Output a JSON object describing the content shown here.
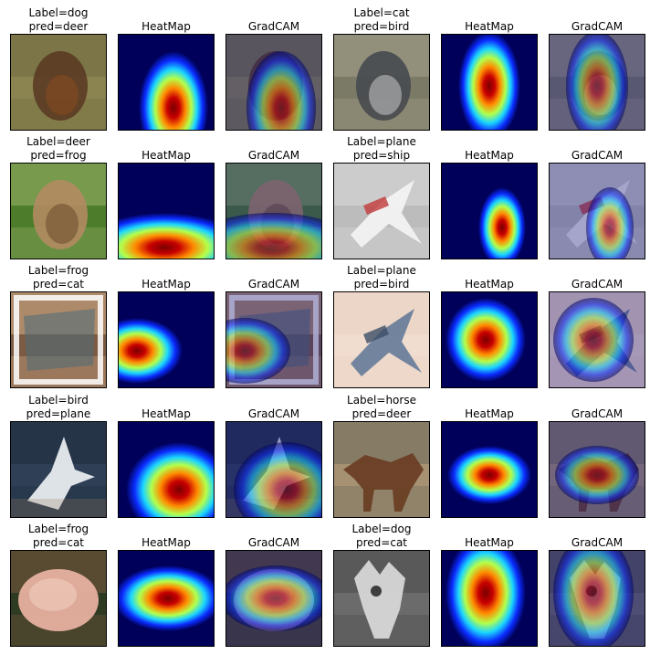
{
  "rows": [
    [
      {
        "title": "Label=dog\npred=deer",
        "kind": "photo",
        "palette": "grass-dog"
      },
      {
        "title": "HeatMap",
        "kind": "heatmap",
        "pattern": "lower-center"
      },
      {
        "title": "GradCAM",
        "kind": "gradcam",
        "palette": "grass-dog",
        "pattern": "lower-center"
      },
      {
        "title": "Label=cat\npred=bird",
        "kind": "photo",
        "palette": "gray-cat"
      },
      {
        "title": "HeatMap",
        "kind": "heatmap",
        "pattern": "center-vertical"
      },
      {
        "title": "GradCAM",
        "kind": "gradcam",
        "palette": "gray-cat",
        "pattern": "center-vertical"
      }
    ],
    [
      {
        "title": "Label=deer\npred=frog",
        "kind": "photo",
        "palette": "forest-deer"
      },
      {
        "title": "HeatMap",
        "kind": "heatmap",
        "pattern": "bottom-band"
      },
      {
        "title": "GradCAM",
        "kind": "gradcam",
        "palette": "forest-deer",
        "pattern": "bottom-band"
      },
      {
        "title": "Label=plane\npred=ship",
        "kind": "photo",
        "palette": "white-plane"
      },
      {
        "title": "HeatMap",
        "kind": "heatmap",
        "pattern": "right-vertical"
      },
      {
        "title": "GradCAM",
        "kind": "gradcam",
        "palette": "white-plane",
        "pattern": "right-vertical"
      }
    ],
    [
      {
        "title": "Label=frog\npred=cat",
        "kind": "photo",
        "palette": "frame-frog"
      },
      {
        "title": "HeatMap",
        "kind": "heatmap",
        "pattern": "left-blob"
      },
      {
        "title": "GradCAM",
        "kind": "gradcam",
        "palette": "frame-frog",
        "pattern": "left-blob"
      },
      {
        "title": "Label=plane\npred=bird",
        "kind": "photo",
        "palette": "pale-plane"
      },
      {
        "title": "HeatMap",
        "kind": "heatmap",
        "pattern": "center-blob"
      },
      {
        "title": "GradCAM",
        "kind": "gradcam",
        "palette": "pale-plane",
        "pattern": "center-blob"
      }
    ],
    [
      {
        "title": "Label=bird\npred=plane",
        "kind": "photo",
        "palette": "sea-bird"
      },
      {
        "title": "HeatMap",
        "kind": "heatmap",
        "pattern": "lower-right"
      },
      {
        "title": "GradCAM",
        "kind": "gradcam",
        "palette": "sea-bird",
        "pattern": "lower-right"
      },
      {
        "title": "Label=horse\npred=deer",
        "kind": "photo",
        "palette": "brown-horse"
      },
      {
        "title": "HeatMap",
        "kind": "heatmap",
        "pattern": "mid-wide"
      },
      {
        "title": "GradCAM",
        "kind": "gradcam",
        "palette": "brown-horse",
        "pattern": "mid-wide"
      }
    ],
    [
      {
        "title": "Label=frog\npred=cat",
        "kind": "photo",
        "palette": "pink-frog"
      },
      {
        "title": "HeatMap",
        "kind": "heatmap",
        "pattern": "center-horizontal"
      },
      {
        "title": "GradCAM",
        "kind": "gradcam",
        "palette": "pink-frog",
        "pattern": "center-horizontal"
      },
      {
        "title": "Label=dog\npred=cat",
        "kind": "photo",
        "palette": "gray-dog"
      },
      {
        "title": "HeatMap",
        "kind": "heatmap",
        "pattern": "center-vertical-wide"
      },
      {
        "title": "GradCAM",
        "kind": "gradcam",
        "palette": "gray-dog",
        "pattern": "center-vertical-wide"
      }
    ]
  ],
  "palettes": {
    "grass-dog": {
      "bg": "#8b8450",
      "bg2": "#6f6a3f",
      "obj": "#5a3b22",
      "obj2": "#8a4b1f"
    },
    "gray-cat": {
      "bg": "#7b7a66",
      "bg2": "#a6a08b",
      "obj": "#474a4f",
      "obj2": "#c9c9c9"
    },
    "forest-deer": {
      "bg": "#4d7d2b",
      "bg2": "#9bb26a",
      "obj": "#b28b62",
      "obj2": "#6a4a2c"
    },
    "white-plane": {
      "bg": "#bcbcbc",
      "bg2": "#d9d9d9",
      "obj": "#f2f2f2",
      "obj2": "#c23a3a"
    },
    "frame-frog": {
      "bg": "#7b5b43",
      "bg2": "#d7b08b",
      "obj": "#4f6b7a",
      "obj2": "#ffffff"
    },
    "pale-plane": {
      "bg": "#f0ddd0",
      "bg2": "#e7cfc0",
      "obj": "#6b7f9b",
      "obj2": "#3c4f66"
    },
    "sea-bird": {
      "bg": "#2f3f56",
      "bg2": "#1d2b3c",
      "obj": "#e7ecef",
      "obj2": "#9a7a5a"
    },
    "brown-horse": {
      "bg": "#a69173",
      "bg2": "#6b6b5a",
      "obj": "#6b3f25",
      "obj2": "#c6a080"
    },
    "pink-frog": {
      "bg": "#2f3a22",
      "bg2": "#7a5a3f",
      "obj": "#e7b0a0",
      "obj2": "#f2d2c2"
    },
    "gray-dog": {
      "bg": "#6b6b6b",
      "bg2": "#4b4b4b",
      "obj": "#d7d7d7",
      "obj2": "#2e2e2e"
    }
  }
}
